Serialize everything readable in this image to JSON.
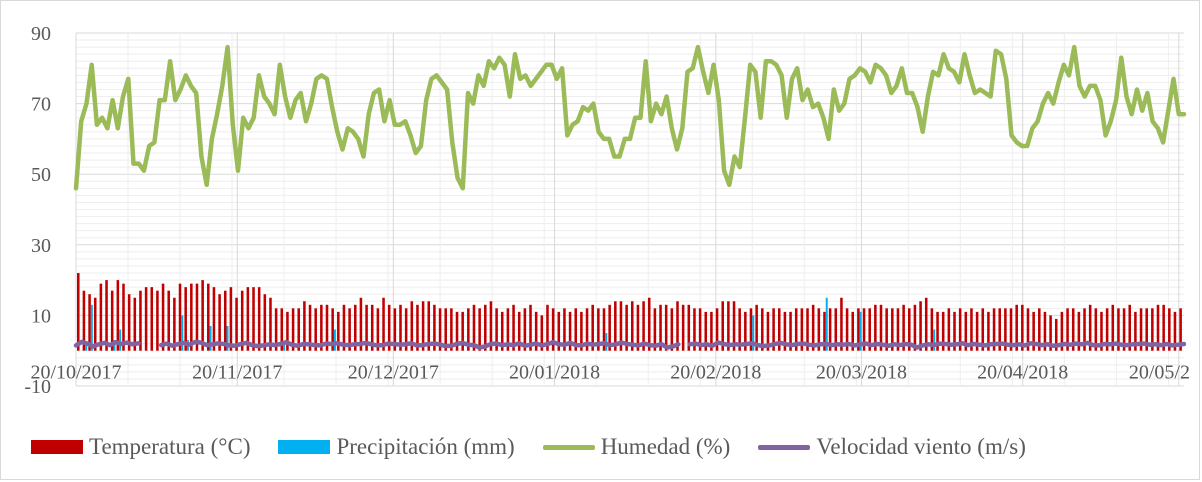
{
  "chart_data": {
    "type": "bar",
    "title": "",
    "xlabel": "",
    "ylabel": "",
    "ylim": [
      -10,
      90
    ],
    "yticks": [
      -10,
      10,
      30,
      50,
      70,
      90
    ],
    "x_tick_labels": [
      "20/10/2017",
      "20/11/2017",
      "20/12/2017",
      "20/01/2018",
      "20/02/2018",
      "20/03/2018",
      "20/04/2018",
      "20/05/2"
    ],
    "x_tick_dates": [
      "2017-10-20",
      "2017-11-20",
      "2017-12-20",
      "2018-01-20",
      "2018-02-20",
      "2018-03-20",
      "2018-04-20",
      "2018-05-20"
    ],
    "x_range": [
      "2017-10-20",
      "2018-05-21"
    ],
    "grid": "vertical major and minor gridlines",
    "legend_position": "bottom",
    "series": [
      {
        "name": "Temperatura (°C)",
        "type": "bar",
        "color": "#C00000",
        "values": [
          22,
          17,
          16,
          15,
          19,
          20,
          17,
          20,
          19,
          16,
          15,
          17,
          18,
          18,
          17,
          19,
          17,
          15,
          19,
          18,
          19,
          19,
          20,
          19,
          18,
          16,
          17,
          18,
          15,
          17,
          18,
          18,
          18,
          16,
          15,
          12,
          12,
          11,
          12,
          12,
          14,
          13,
          12,
          13,
          13,
          12,
          11,
          13,
          12,
          13,
          15,
          13,
          13,
          12,
          15,
          13,
          12,
          13,
          12,
          14,
          13,
          14,
          14,
          13,
          12,
          12,
          12,
          11,
          11,
          12,
          13,
          12,
          13,
          14,
          12,
          11,
          12,
          13,
          11,
          12,
          13,
          11,
          10,
          13,
          12,
          11,
          12,
          11,
          12,
          11,
          12,
          13,
          12,
          12,
          13,
          14,
          14,
          13,
          14,
          13,
          14,
          15,
          12,
          13,
          13,
          12,
          14,
          13,
          13,
          12,
          12,
          11,
          11,
          12,
          14,
          14,
          14,
          12,
          11,
          12,
          13,
          12,
          11,
          12,
          12,
          11,
          11,
          12,
          12,
          12,
          13,
          12,
          11,
          12,
          12,
          15,
          12,
          11,
          12,
          12,
          12,
          13,
          13,
          12,
          12,
          12,
          13,
          12,
          13,
          14,
          15,
          12,
          11,
          11,
          12,
          11,
          12,
          11,
          12,
          11,
          12,
          11,
          12,
          12,
          12,
          12,
          13,
          13,
          12,
          11,
          12,
          11,
          10,
          9,
          11,
          12,
          12,
          11,
          12,
          13,
          12,
          11,
          12,
          13,
          12,
          12,
          13,
          11,
          12,
          12,
          12,
          13,
          13,
          12,
          11,
          12
        ]
      },
      {
        "name": "Precipitación (mm)",
        "type": "bar",
        "color": "#00B0F0",
        "values": [
          0,
          2,
          13,
          0,
          0,
          0,
          3,
          6,
          0,
          0,
          0,
          0,
          0,
          0,
          0,
          0,
          0,
          0,
          10,
          3,
          0,
          0,
          0,
          7,
          0,
          0,
          7,
          0,
          0,
          0,
          0,
          0,
          0,
          0,
          0,
          0,
          2,
          0,
          0,
          0,
          0,
          0,
          0,
          0,
          0,
          6,
          0,
          0,
          0,
          0,
          0,
          0,
          0,
          0,
          0,
          0,
          0,
          0,
          0,
          0,
          0,
          0,
          0,
          0,
          0,
          0,
          0,
          0,
          0,
          0,
          0,
          0,
          0,
          0,
          0,
          0,
          0,
          0,
          0,
          0,
          0,
          0,
          0,
          0,
          0,
          0,
          0,
          0,
          0,
          0,
          0,
          0,
          0,
          5,
          0,
          0,
          0,
          0,
          0,
          0,
          0,
          0,
          0,
          0,
          0,
          0,
          0,
          0,
          0,
          0,
          0,
          0,
          0,
          0,
          0,
          0,
          0,
          0,
          0,
          10,
          0,
          0,
          0,
          0,
          0,
          0,
          0,
          0,
          0,
          0,
          0,
          0,
          15,
          0,
          0,
          0,
          0,
          0,
          11,
          0,
          0,
          0,
          0,
          0,
          0,
          0,
          0,
          0,
          0,
          0,
          0,
          6,
          0,
          0,
          0,
          0,
          0,
          0,
          0,
          0,
          0,
          0,
          0,
          0,
          0,
          0,
          0,
          0,
          0,
          0,
          0,
          0,
          0,
          0,
          0,
          0,
          0,
          0,
          0,
          0,
          0,
          0,
          0,
          0,
          0,
          0,
          0,
          0,
          0,
          0,
          0,
          0,
          0,
          0,
          0,
          0,
          0,
          0
        ]
      },
      {
        "name": "Humedad (%)",
        "type": "line",
        "color": "#9BBB59",
        "values": [
          46,
          65,
          70,
          81,
          64,
          66,
          63,
          71,
          63,
          72,
          77,
          53,
          53,
          51,
          58,
          59,
          71,
          71,
          82,
          71,
          74,
          78,
          75,
          73,
          55,
          47,
          60,
          67,
          75,
          86,
          64,
          51,
          66,
          63,
          66,
          78,
          72,
          70,
          67,
          81,
          72,
          66,
          71,
          73,
          65,
          70,
          77,
          78,
          77,
          69,
          62,
          57,
          63,
          62,
          60,
          55,
          67,
          73,
          74,
          65,
          71,
          64,
          64,
          65,
          61,
          56,
          58,
          71,
          77,
          78,
          76,
          74,
          59,
          49,
          46,
          73,
          70,
          78,
          75,
          82,
          80,
          83,
          81,
          72,
          84,
          77,
          78,
          75,
          77,
          79,
          81,
          81,
          77,
          80,
          61,
          64,
          65,
          69,
          68,
          70,
          62,
          60,
          60,
          55,
          55,
          60,
          60,
          66,
          66,
          82,
          65,
          70,
          67,
          72,
          63,
          57,
          63,
          79,
          80,
          86,
          79,
          73,
          81,
          71,
          51,
          47,
          55,
          52,
          66,
          81,
          79,
          66,
          82,
          82,
          81,
          78,
          66,
          77,
          80,
          71,
          74,
          69,
          70,
          66,
          60,
          74,
          68,
          70,
          77,
          78,
          80,
          79,
          76,
          81,
          80,
          78,
          73,
          75,
          80,
          73,
          73,
          69,
          62,
          72,
          79,
          78,
          84,
          80,
          79,
          76,
          84,
          78,
          73,
          74,
          73,
          72,
          85,
          84,
          77,
          61,
          59,
          58,
          58,
          63,
          65,
          70,
          73,
          70,
          76,
          81,
          78,
          86,
          75,
          72,
          75,
          75,
          71,
          61,
          65,
          71,
          83,
          72,
          67,
          74,
          68,
          73,
          65,
          63,
          59,
          68,
          77,
          67,
          67
        ]
      },
      {
        "name": "Velocidad viento (m/s)",
        "type": "line",
        "color": "#8064A2",
        "values": [
          1.5,
          2.5,
          2.0,
          1.2,
          1.8,
          2.2,
          1.6,
          2.4,
          1.9,
          2.3,
          1.8,
          2.1,
          null,
          null,
          null,
          1.6,
          2.0,
          1.4,
          1.9,
          2.2,
          1.7,
          2.5,
          2.3,
          1.6,
          1.8,
          2.1,
          1.9,
          1.5,
          1.4,
          1.9,
          2.2,
          1.6,
          1.3,
          1.5,
          1.8,
          1.6,
          1.9,
          2.4,
          1.7,
          1.4,
          1.9,
          1.8,
          1.6,
          1.5,
          2.0,
          1.9,
          2.1,
          1.7,
          1.6,
          1.8,
          1.9,
          2.2,
          1.8,
          1.5,
          1.6,
          2.0,
          1.9,
          1.7,
          1.8,
          2.1,
          1.5,
          1.6,
          1.9,
          2.0,
          1.8,
          1.3,
          1.4,
          1.9,
          2.2,
          1.7,
          1.6,
          0.9,
          1.2,
          1.9,
          2.0,
          1.6,
          1.8,
          1.6,
          2.1,
          1.4,
          1.7,
          2.0,
          1.5,
          1.9,
          2.4,
          1.8,
          1.7,
          2.2,
          1.6,
          1.5,
          2.0,
          1.7,
          1.9,
          2.1,
          1.6,
          1.8,
          2.3,
          1.9,
          1.7,
          1.5,
          2.0,
          1.6,
          1.4,
          1.9,
          0.9,
          1.2,
          1.8,
          null,
          1.8,
          2.0,
          1.6,
          1.8,
          1.4,
          2.3,
          1.9,
          1.6,
          1.8,
          1.7,
          1.9,
          2.1,
          1.6,
          1.3,
          1.5,
          1.9,
          2.2,
          1.8,
          1.6,
          1.9,
          2.0,
          1.7,
          1.5,
          1.8,
          1.9,
          1.6,
          1.8,
          1.7,
          1.9,
          1.5,
          1.8,
          2.0,
          1.6,
          1.9,
          1.7,
          1.4,
          1.8,
          1.6,
          1.9,
          1.7,
          0.9,
          1.5,
          1.8,
          1.6,
          2.0,
          1.9,
          1.7,
          1.8,
          2.1,
          1.6,
          1.9,
          1.7,
          1.5,
          1.8,
          1.9,
          2.0,
          1.7,
          1.6,
          1.8,
          1.5,
          2.1,
          1.9,
          1.6,
          1.8,
          1.4,
          1.6,
          1.9,
          1.7,
          2.0,
          1.8,
          2.2,
          1.6,
          1.5,
          1.9,
          1.8,
          2.0,
          1.7,
          1.6,
          1.8,
          1.9,
          2.0,
          1.7,
          1.8,
          1.6,
          1.9,
          1.5,
          1.7,
          1.9
        ]
      }
    ]
  }
}
